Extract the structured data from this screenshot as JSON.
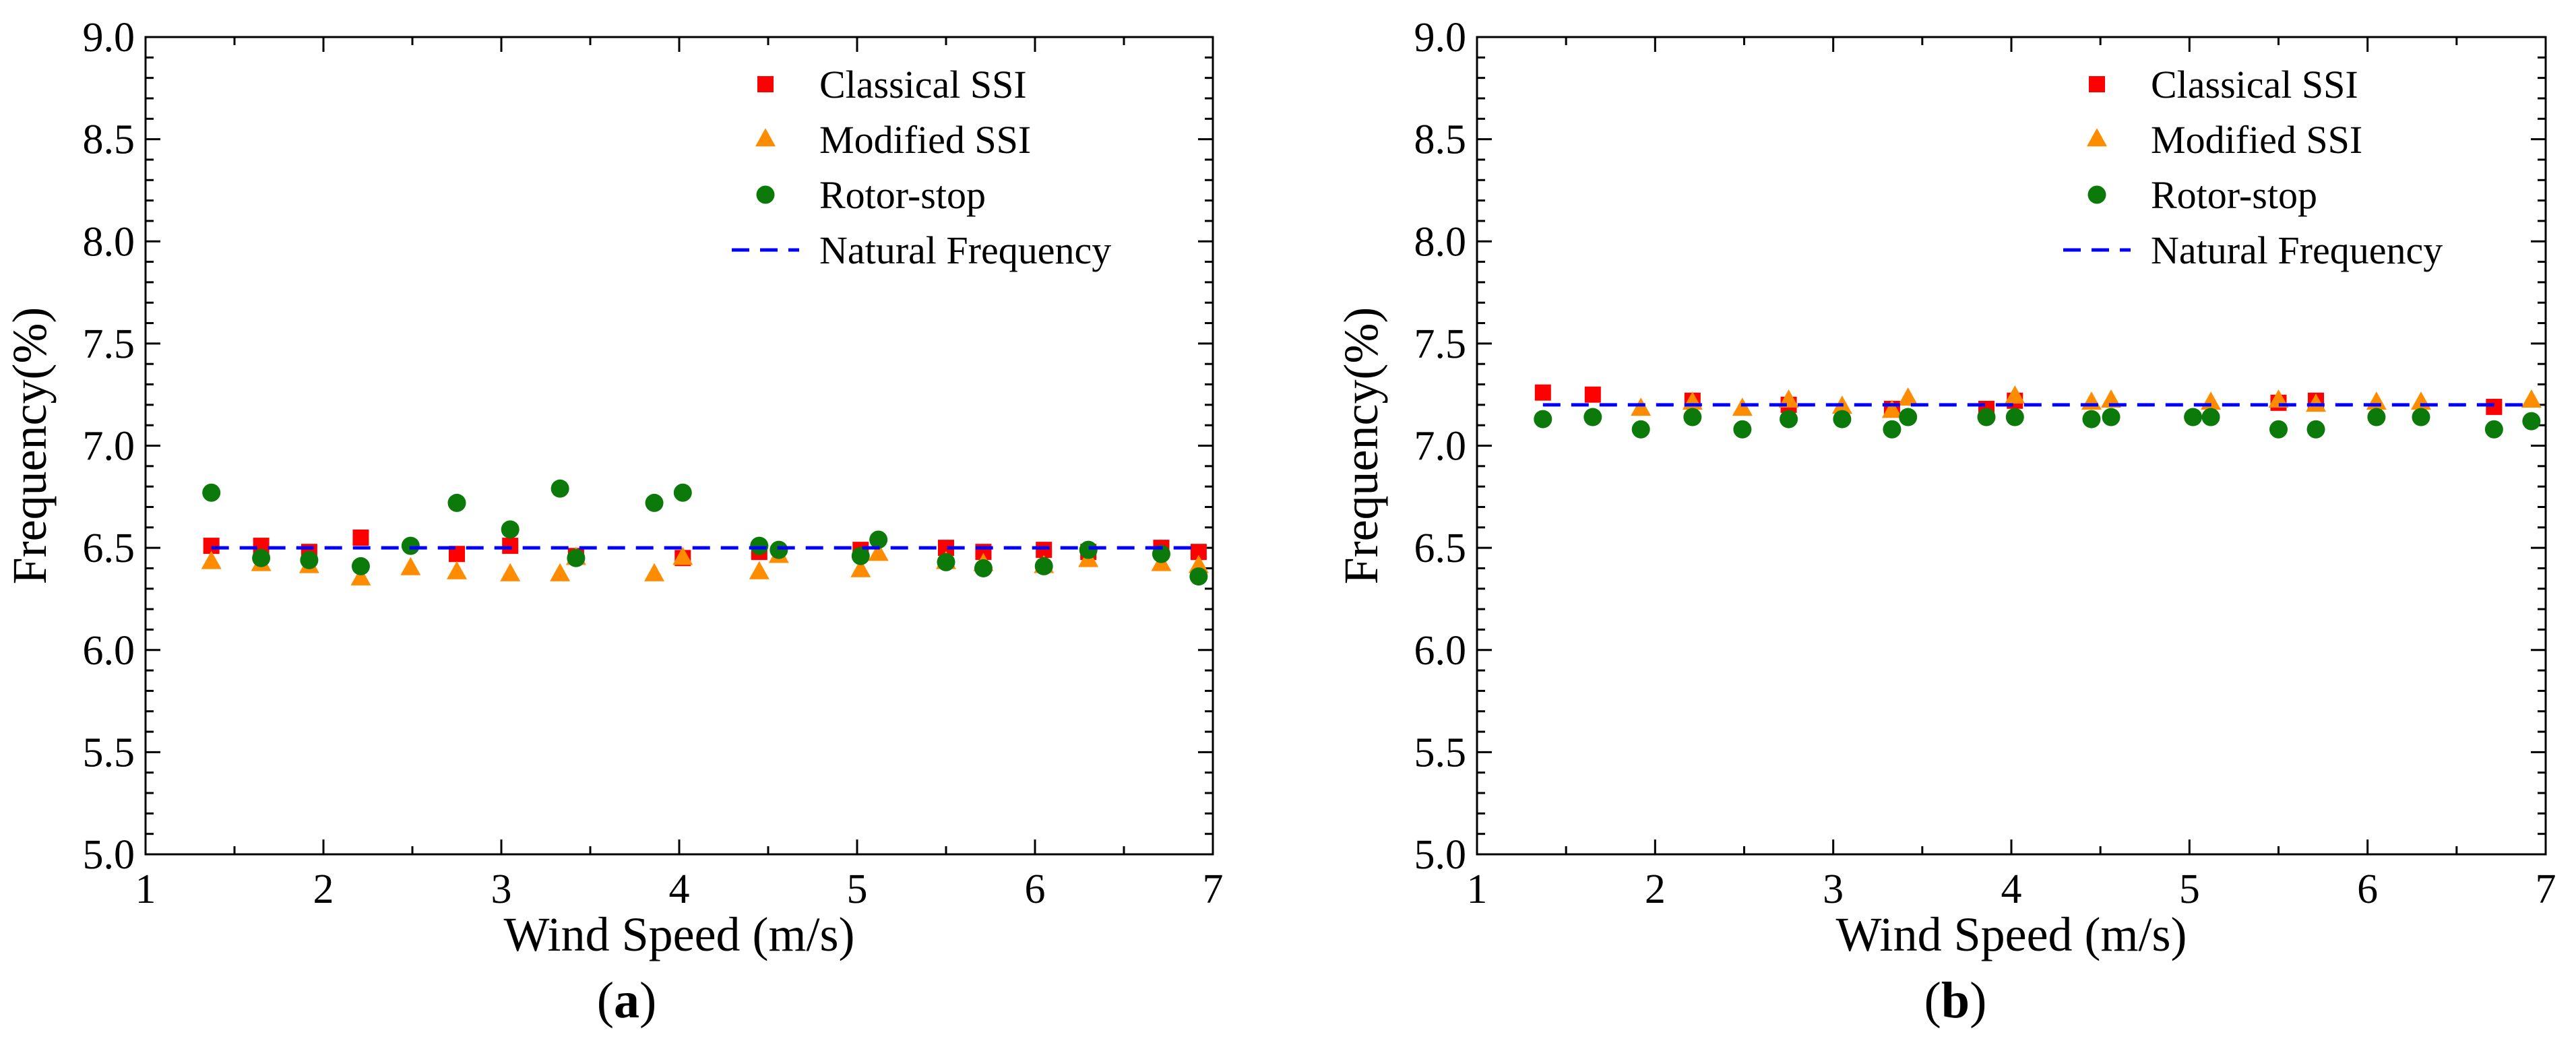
{
  "chart_data": [
    {
      "type": "scatter",
      "panel_label": "(a)",
      "panel_letter": "a",
      "xlabel": "Wind Speed (m/s)",
      "ylabel": "Frequency(%)",
      "xlim": [
        1,
        7
      ],
      "ylim": [
        5.0,
        9.0
      ],
      "xticks": [
        "1",
        "2",
        "3",
        "4",
        "5",
        "6",
        "7"
      ],
      "yticks": [
        "5.0",
        "5.5",
        "6.0",
        "6.5",
        "7.0",
        "7.5",
        "8.0",
        "8.5",
        "9.0"
      ],
      "legend_position": "top-right",
      "series": [
        {
          "name": "Classical SSI",
          "marker": "square",
          "color": "#ff0000",
          "x": [
            1.37,
            1.65,
            1.92,
            2.21,
            2.75,
            3.05,
            3.42,
            4.02,
            4.45,
            5.02,
            5.5,
            5.71,
            6.05,
            6.3,
            6.71,
            6.92
          ],
          "y": [
            6.51,
            6.51,
            6.48,
            6.55,
            6.47,
            6.51,
            6.46,
            6.45,
            6.48,
            6.49,
            6.5,
            6.48,
            6.49,
            6.48,
            6.5,
            6.48
          ]
        },
        {
          "name": "Modified SSI",
          "marker": "triangle",
          "color": "#ff8c00",
          "x": [
            1.37,
            1.65,
            1.92,
            2.21,
            2.49,
            2.75,
            3.05,
            3.33,
            3.42,
            3.86,
            4.02,
            4.45,
            4.56,
            5.02,
            5.12,
            5.5,
            5.71,
            6.05,
            6.3,
            6.71,
            6.92
          ],
          "y": [
            6.43,
            6.42,
            6.41,
            6.35,
            6.4,
            6.38,
            6.37,
            6.37,
            6.45,
            6.37,
            6.45,
            6.38,
            6.46,
            6.39,
            6.47,
            6.43,
            6.42,
            6.41,
            6.44,
            6.42,
            6.41
          ]
        },
        {
          "name": "Rotor-stop",
          "marker": "circle",
          "color": "#0b7a0b",
          "x": [
            1.37,
            1.65,
            1.92,
            2.21,
            2.49,
            2.75,
            3.05,
            3.33,
            3.42,
            3.86,
            4.02,
            4.45,
            4.56,
            5.02,
            5.12,
            5.5,
            5.71,
            6.05,
            6.3,
            6.71,
            6.92
          ],
          "y": [
            6.77,
            6.45,
            6.44,
            6.41,
            6.51,
            6.72,
            6.59,
            6.79,
            6.45,
            6.72,
            6.77,
            6.51,
            6.49,
            6.46,
            6.54,
            6.43,
            6.4,
            6.41,
            6.49,
            6.47,
            6.36
          ]
        },
        {
          "name": "Natural Frequency",
          "marker": "dashed-line",
          "color": "#0000ff",
          "x": [
            1.37,
            6.92
          ],
          "y": [
            6.5,
            6.5
          ]
        }
      ]
    },
    {
      "type": "scatter",
      "panel_label": "(b)",
      "panel_letter": "b",
      "xlabel": "Wind Speed (m/s)",
      "ylabel": "Frequency(%)",
      "xlim": [
        1,
        7
      ],
      "ylim": [
        5.0,
        9.0
      ],
      "xticks": [
        "1",
        "2",
        "3",
        "4",
        "5",
        "6",
        "7"
      ],
      "yticks": [
        "5.0",
        "5.5",
        "6.0",
        "6.5",
        "7.0",
        "7.5",
        "8.0",
        "8.5",
        "9.0"
      ],
      "legend_position": "top-right",
      "series": [
        {
          "name": "Classical SSI",
          "marker": "square",
          "color": "#ff0000",
          "x": [
            1.37,
            1.65,
            2.21,
            2.75,
            3.33,
            3.86,
            4.02,
            5.5,
            5.71,
            6.71
          ],
          "y": [
            7.26,
            7.25,
            7.22,
            7.2,
            7.18,
            7.18,
            7.22,
            7.21,
            7.22,
            7.19
          ]
        },
        {
          "name": "Modified SSI",
          "marker": "triangle",
          "color": "#ff8c00",
          "x": [
            1.92,
            2.21,
            2.49,
            2.75,
            3.05,
            3.33,
            3.42,
            4.02,
            4.45,
            4.56,
            5.12,
            5.5,
            5.71,
            6.05,
            6.3,
            6.92
          ],
          "y": [
            7.18,
            7.21,
            7.18,
            7.22,
            7.19,
            7.17,
            7.23,
            7.24,
            7.21,
            7.22,
            7.21,
            7.22,
            7.2,
            7.21,
            7.21,
            7.22
          ]
        },
        {
          "name": "Rotor-stop",
          "marker": "circle",
          "color": "#0b7a0b",
          "x": [
            1.37,
            1.65,
            1.92,
            2.21,
            2.49,
            2.75,
            3.05,
            3.33,
            3.42,
            3.86,
            4.02,
            4.45,
            4.56,
            5.02,
            5.12,
            5.5,
            5.71,
            6.05,
            6.3,
            6.71,
            6.92
          ],
          "y": [
            7.13,
            7.14,
            7.08,
            7.14,
            7.08,
            7.13,
            7.13,
            7.08,
            7.14,
            7.14,
            7.14,
            7.13,
            7.14,
            7.14,
            7.14,
            7.08,
            7.08,
            7.14,
            7.14,
            7.08,
            7.12
          ]
        },
        {
          "name": "Natural Frequency",
          "marker": "dashed-line",
          "color": "#0000ff",
          "x": [
            1.37,
            6.92
          ],
          "y": [
            7.2,
            7.2
          ]
        }
      ]
    }
  ]
}
